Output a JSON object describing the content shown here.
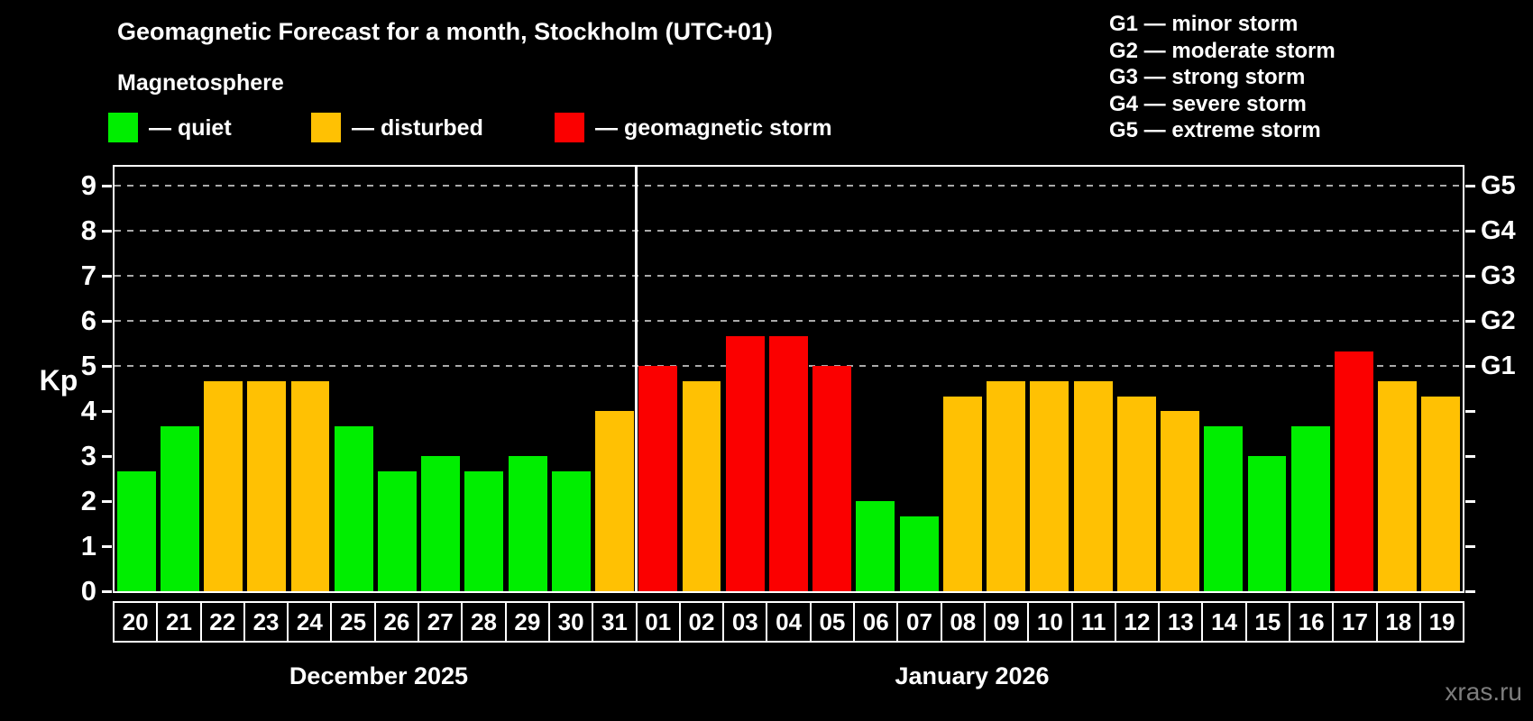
{
  "title": "Geomagnetic Forecast for a month, Stockholm (UTC+01)",
  "subtitle": "Magnetosphere",
  "legend": {
    "items": [
      {
        "key": "quiet",
        "label": "— quiet",
        "color": "#00ee00"
      },
      {
        "key": "disturbed",
        "label": "— disturbed",
        "color": "#ffc103"
      },
      {
        "key": "storm",
        "label": "— geomagnetic storm",
        "color": "#fb0000"
      }
    ]
  },
  "g_legend": {
    "items": [
      "G1 — minor storm",
      "G2 — moderate storm",
      "G3 — strong storm",
      "G4 — severe storm",
      "G5 — extreme storm"
    ]
  },
  "watermark": "xras.ru",
  "chart_data": {
    "type": "bar",
    "title": "Geomagnetic Forecast for a month, Stockholm (UTC+01)",
    "ylabel": "Kp",
    "ylim": [
      0,
      9.4
    ],
    "yticks": [
      0,
      1,
      2,
      3,
      4,
      5,
      6,
      7,
      8,
      9
    ],
    "gridlines_at": [
      5,
      6,
      7,
      8,
      9
    ],
    "grid": "dashed, only at storm levels 5-9",
    "legend_position": "top-left",
    "right_axis_labels": [
      {
        "value": 5,
        "label": "G1"
      },
      {
        "value": 6,
        "label": "G2"
      },
      {
        "value": 7,
        "label": "G3"
      },
      {
        "value": 8,
        "label": "G4"
      },
      {
        "value": 9,
        "label": "G5"
      }
    ],
    "months": [
      {
        "label": "December 2025",
        "days": 12
      },
      {
        "label": "January 2026",
        "days": 19
      }
    ],
    "categories": [
      "20",
      "21",
      "22",
      "23",
      "24",
      "25",
      "26",
      "27",
      "28",
      "29",
      "30",
      "31",
      "01",
      "02",
      "03",
      "04",
      "05",
      "06",
      "07",
      "08",
      "09",
      "10",
      "11",
      "12",
      "13",
      "14",
      "15",
      "16",
      "17",
      "18",
      "19"
    ],
    "values": [
      2.67,
      3.67,
      4.67,
      4.67,
      4.67,
      3.67,
      2.67,
      3,
      2.67,
      3,
      2.67,
      4,
      5,
      4.67,
      5.67,
      5.67,
      5,
      2,
      1.67,
      4.33,
      4.67,
      4.67,
      4.67,
      4.33,
      4,
      3.67,
      3,
      3.67,
      5.33,
      4.67,
      4.33
    ],
    "statuses": [
      "quiet",
      "quiet",
      "disturbed",
      "disturbed",
      "disturbed",
      "quiet",
      "quiet",
      "quiet",
      "quiet",
      "quiet",
      "quiet",
      "disturbed",
      "storm",
      "disturbed",
      "storm",
      "storm",
      "storm",
      "quiet",
      "quiet",
      "disturbed",
      "disturbed",
      "disturbed",
      "disturbed",
      "disturbed",
      "disturbed",
      "quiet",
      "quiet",
      "quiet",
      "storm",
      "disturbed",
      "disturbed"
    ],
    "colors": {
      "quiet": "#00ee00",
      "disturbed": "#ffc103",
      "storm": "#fb0000"
    },
    "gridline_color": "#aaaaaa"
  }
}
